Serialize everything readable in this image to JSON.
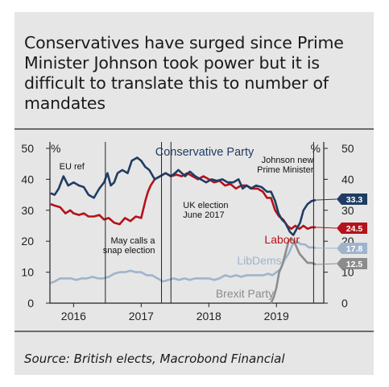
{
  "title": "Conservatives have surged since Prime Minister Johnson took power but it is difficult to translate this to number of mandates",
  "source": "Source: British elects, Macrobond Financial",
  "chart_data": {
    "type": "line",
    "y_unit_left": "%",
    "y_unit_right": "%",
    "ylim": [
      0,
      50
    ],
    "yticks": [
      0,
      10,
      20,
      30,
      40,
      50
    ],
    "xlim": [
      2015.65,
      2019.7
    ],
    "xticks": [
      {
        "label": "2016",
        "at": 2016.0
      },
      {
        "label": "2017",
        "at": 2017.0
      },
      {
        "label": "2018",
        "at": 2018.0
      },
      {
        "label": "2019",
        "at": 2019.0
      }
    ],
    "grid": false,
    "series": [
      {
        "name": "Conservative Party",
        "color": "#1f3d63",
        "end_value": "33.3",
        "points": [
          [
            2015.66,
            35.5
          ],
          [
            2015.72,
            35
          ],
          [
            2015.78,
            37
          ],
          [
            2015.85,
            41
          ],
          [
            2015.92,
            38
          ],
          [
            2016.0,
            39
          ],
          [
            2016.08,
            38
          ],
          [
            2016.15,
            37.5
          ],
          [
            2016.22,
            35
          ],
          [
            2016.3,
            34
          ],
          [
            2016.38,
            37
          ],
          [
            2016.45,
            39
          ],
          [
            2016.5,
            42
          ],
          [
            2016.55,
            38
          ],
          [
            2016.6,
            39
          ],
          [
            2016.65,
            42
          ],
          [
            2016.72,
            43
          ],
          [
            2016.8,
            42
          ],
          [
            2016.86,
            46
          ],
          [
            2016.94,
            47
          ],
          [
            2017.0,
            46
          ],
          [
            2017.06,
            44
          ],
          [
            2017.12,
            43
          ],
          [
            2017.2,
            40
          ],
          [
            2017.28,
            41
          ],
          [
            2017.36,
            42
          ],
          [
            2017.44,
            41
          ],
          [
            2017.5,
            42
          ],
          [
            2017.55,
            43
          ],
          [
            2017.6,
            42
          ],
          [
            2017.65,
            41
          ],
          [
            2017.72,
            42.5
          ],
          [
            2017.8,
            41
          ],
          [
            2017.88,
            40
          ],
          [
            2017.96,
            39
          ],
          [
            2018.04,
            40
          ],
          [
            2018.12,
            39.5
          ],
          [
            2018.2,
            40
          ],
          [
            2018.28,
            39
          ],
          [
            2018.36,
            39
          ],
          [
            2018.44,
            40
          ],
          [
            2018.5,
            37
          ],
          [
            2018.56,
            38
          ],
          [
            2018.62,
            37
          ],
          [
            2018.7,
            38
          ],
          [
            2018.78,
            37.5
          ],
          [
            2018.86,
            36
          ],
          [
            2018.92,
            36
          ],
          [
            2018.98,
            33
          ],
          [
            2019.03,
            29
          ],
          [
            2019.08,
            27
          ],
          [
            2019.13,
            26
          ],
          [
            2019.2,
            23
          ],
          [
            2019.25,
            22
          ],
          [
            2019.3,
            24
          ],
          [
            2019.35,
            26
          ],
          [
            2019.4,
            30
          ],
          [
            2019.46,
            32
          ],
          [
            2019.52,
            33
          ],
          [
            2019.58,
            33.3
          ]
        ]
      },
      {
        "name": "Labour",
        "color": "#b5121b",
        "end_value": "24.5",
        "points": [
          [
            2015.66,
            32
          ],
          [
            2015.72,
            31.5
          ],
          [
            2015.8,
            31
          ],
          [
            2015.88,
            29
          ],
          [
            2015.95,
            30
          ],
          [
            2016.0,
            29
          ],
          [
            2016.08,
            28.5
          ],
          [
            2016.15,
            29
          ],
          [
            2016.22,
            28
          ],
          [
            2016.3,
            28
          ],
          [
            2016.38,
            28.5
          ],
          [
            2016.45,
            27
          ],
          [
            2016.52,
            27.5
          ],
          [
            2016.6,
            26
          ],
          [
            2016.68,
            25.5
          ],
          [
            2016.76,
            27.5
          ],
          [
            2016.84,
            26.5
          ],
          [
            2016.92,
            28
          ],
          [
            2017.0,
            27.5
          ],
          [
            2017.06,
            33
          ],
          [
            2017.1,
            36
          ],
          [
            2017.14,
            38
          ],
          [
            2017.2,
            40
          ],
          [
            2017.28,
            41
          ],
          [
            2017.36,
            42
          ],
          [
            2017.44,
            41
          ],
          [
            2017.52,
            41.5
          ],
          [
            2017.6,
            41
          ],
          [
            2017.68,
            42
          ],
          [
            2017.76,
            41
          ],
          [
            2017.84,
            40
          ],
          [
            2017.92,
            41
          ],
          [
            2018.0,
            40
          ],
          [
            2018.08,
            39
          ],
          [
            2018.16,
            39.5
          ],
          [
            2018.24,
            38
          ],
          [
            2018.32,
            38.5
          ],
          [
            2018.4,
            37
          ],
          [
            2018.48,
            38
          ],
          [
            2018.56,
            38
          ],
          [
            2018.64,
            37
          ],
          [
            2018.72,
            37
          ],
          [
            2018.8,
            36
          ],
          [
            2018.86,
            34
          ],
          [
            2018.92,
            34
          ],
          [
            2018.98,
            30
          ],
          [
            2019.04,
            28
          ],
          [
            2019.1,
            27
          ],
          [
            2019.16,
            25
          ],
          [
            2019.22,
            24
          ],
          [
            2019.28,
            25
          ],
          [
            2019.34,
            24
          ],
          [
            2019.4,
            25
          ],
          [
            2019.46,
            24
          ],
          [
            2019.52,
            24.5
          ],
          [
            2019.58,
            24.5
          ]
        ]
      },
      {
        "name": "LibDems",
        "color": "#9fb4cb",
        "end_value": "17.8",
        "points": [
          [
            2015.66,
            6.5
          ],
          [
            2015.72,
            7
          ],
          [
            2015.8,
            8
          ],
          [
            2015.88,
            8
          ],
          [
            2015.96,
            8
          ],
          [
            2016.04,
            7.5
          ],
          [
            2016.12,
            8
          ],
          [
            2016.2,
            8
          ],
          [
            2016.28,
            8.5
          ],
          [
            2016.36,
            8
          ],
          [
            2016.44,
            8
          ],
          [
            2016.52,
            8.5
          ],
          [
            2016.6,
            9.5
          ],
          [
            2016.68,
            10
          ],
          [
            2016.76,
            10
          ],
          [
            2016.84,
            10.5
          ],
          [
            2016.92,
            10
          ],
          [
            2017.0,
            10
          ],
          [
            2017.08,
            9
          ],
          [
            2017.16,
            9
          ],
          [
            2017.24,
            8
          ],
          [
            2017.32,
            7
          ],
          [
            2017.4,
            7.5
          ],
          [
            2017.48,
            8
          ],
          [
            2017.56,
            7.5
          ],
          [
            2017.64,
            8
          ],
          [
            2017.72,
            7.5
          ],
          [
            2017.8,
            8
          ],
          [
            2017.88,
            8
          ],
          [
            2018.0,
            8
          ],
          [
            2018.08,
            7.5
          ],
          [
            2018.16,
            8
          ],
          [
            2018.24,
            9
          ],
          [
            2018.32,
            8.5
          ],
          [
            2018.4,
            9
          ],
          [
            2018.48,
            8.5
          ],
          [
            2018.56,
            9
          ],
          [
            2018.64,
            9
          ],
          [
            2018.72,
            9
          ],
          [
            2018.8,
            9
          ],
          [
            2018.88,
            9.5
          ],
          [
            2018.94,
            9
          ],
          [
            2019.0,
            10
          ],
          [
            2019.06,
            11
          ],
          [
            2019.12,
            14
          ],
          [
            2019.18,
            16
          ],
          [
            2019.24,
            19
          ],
          [
            2019.3,
            20
          ],
          [
            2019.36,
            19
          ],
          [
            2019.42,
            19
          ],
          [
            2019.48,
            18
          ],
          [
            2019.54,
            18
          ],
          [
            2019.58,
            17.8
          ]
        ]
      },
      {
        "name": "Brexit Party",
        "color": "#8c8c8c",
        "end_value": "12.5",
        "points": [
          [
            2018.92,
            0
          ],
          [
            2018.96,
            2
          ],
          [
            2019.0,
            5
          ],
          [
            2019.04,
            10
          ],
          [
            2019.08,
            12
          ],
          [
            2019.12,
            15
          ],
          [
            2019.18,
            20
          ],
          [
            2019.22,
            21
          ],
          [
            2019.26,
            20
          ],
          [
            2019.3,
            18
          ],
          [
            2019.34,
            16
          ],
          [
            2019.38,
            15
          ],
          [
            2019.42,
            14
          ],
          [
            2019.46,
            13
          ],
          [
            2019.52,
            13
          ],
          [
            2019.58,
            12.5
          ]
        ]
      }
    ],
    "annotations": [
      {
        "lines": [
          "EU ref"
        ],
        "at": 2016.47
      },
      {
        "lines": [
          "May calls a",
          "snap election"
        ],
        "at": 2017.3
      },
      {
        "lines": [
          "UK election",
          "June 2017"
        ],
        "at": 2017.44
      },
      {
        "lines": [
          "Johnson new",
          "Prime Minister"
        ],
        "at": 2019.55
      }
    ]
  }
}
